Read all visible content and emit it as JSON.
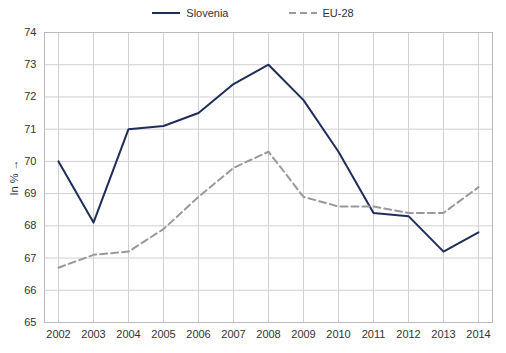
{
  "chart_data": {
    "type": "line",
    "categories": [
      "2002",
      "2003",
      "2004",
      "2005",
      "2006",
      "2007",
      "2008",
      "2009",
      "2010",
      "2011",
      "2012",
      "2013",
      "2014"
    ],
    "series": [
      {
        "name": "Slovenia",
        "color": "#1f2d5a",
        "line_style": "solid",
        "values": [
          70.0,
          68.1,
          71.0,
          71.1,
          71.5,
          72.4,
          73.0,
          71.9,
          70.3,
          68.4,
          68.3,
          67.2,
          67.8
        ]
      },
      {
        "name": "EU-28",
        "color": "#999999",
        "line_style": "dashed",
        "values": [
          66.7,
          67.1,
          67.2,
          67.9,
          68.9,
          69.8,
          70.3,
          68.9,
          68.6,
          68.6,
          68.4,
          68.4,
          69.2
        ]
      }
    ],
    "y_label": "In %",
    "ylim": [
      65,
      74
    ],
    "yticks": [
      65,
      66,
      67,
      68,
      69,
      70,
      71,
      72,
      73,
      74
    ],
    "grid": true,
    "legend": "top"
  }
}
